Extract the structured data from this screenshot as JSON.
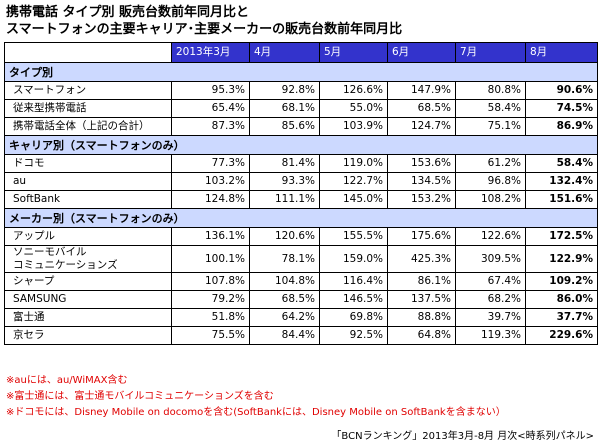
{
  "header": {
    "title_lines": [
      "携帯電話 タイプ別 販売台数前年同月比と",
      "スマートフォンの主要キャリア･主要メーカーの販売台数前年同月比"
    ]
  },
  "table": {
    "columns": [
      "2013年3月",
      "4月",
      "5月",
      "6月",
      "7月",
      "8月"
    ],
    "sections": [
      {
        "title": "タイプ別",
        "rows": [
          {
            "label": [
              "スマートフォン"
            ],
            "values": [
              "95.3%",
              "92.8%",
              "126.6%",
              "147.9%",
              "80.8%",
              "90.6%"
            ]
          },
          {
            "label": [
              "従来型携帯電話"
            ],
            "values": [
              "65.4%",
              "68.1%",
              "55.0%",
              "68.5%",
              "58.4%",
              "74.5%"
            ]
          },
          {
            "label": [
              "携帯電話全体（上記の合計）"
            ],
            "values": [
              "87.3%",
              "85.6%",
              "103.9%",
              "124.7%",
              "75.1%",
              "86.9%"
            ]
          }
        ]
      },
      {
        "title": "キャリア別（スマートフォンのみ）",
        "rows": [
          {
            "label": [
              "ドコモ"
            ],
            "values": [
              "77.3%",
              "81.4%",
              "119.0%",
              "153.6%",
              "61.2%",
              "58.4%"
            ]
          },
          {
            "label": [
              "au"
            ],
            "values": [
              "103.2%",
              "93.3%",
              "122.7%",
              "134.5%",
              "96.8%",
              "132.4%"
            ]
          },
          {
            "label": [
              "SoftBank"
            ],
            "values": [
              "124.8%",
              "111.1%",
              "145.0%",
              "153.2%",
              "108.2%",
              "151.6%"
            ]
          }
        ]
      },
      {
        "title": "メーカー別（スマートフォンのみ）",
        "rows": [
          {
            "label": [
              "アップル"
            ],
            "values": [
              "136.1%",
              "120.6%",
              "155.5%",
              "175.6%",
              "122.6%",
              "172.5%"
            ]
          },
          {
            "label": [
              "ソニーモバイル",
              "コミュニケーションズ"
            ],
            "values": [
              "100.1%",
              "78.1%",
              "159.0%",
              "425.3%",
              "309.5%",
              "122.9%"
            ]
          },
          {
            "label": [
              "シャープ"
            ],
            "values": [
              "107.8%",
              "104.8%",
              "116.4%",
              "86.1%",
              "67.4%",
              "109.2%"
            ]
          },
          {
            "label": [
              "SAMSUNG"
            ],
            "values": [
              "79.2%",
              "68.5%",
              "146.5%",
              "137.5%",
              "68.2%",
              "86.0%"
            ]
          },
          {
            "label": [
              "富士通"
            ],
            "values": [
              "51.8%",
              "64.2%",
              "69.8%",
              "88.8%",
              "39.7%",
              "37.7%"
            ]
          },
          {
            "label": [
              "京セラ"
            ],
            "values": [
              "75.5%",
              "84.4%",
              "92.5%",
              "64.8%",
              "119.3%",
              "229.6%"
            ]
          }
        ]
      }
    ]
  },
  "notes": [
    "※auには、au/WiMAX含む",
    "※富士通には、富士通モバイルコミュニケーションズを含む",
    "※ドコモには、Disney Mobile on docomoを含む(SoftBankには、Disney Mobile on SoftBankを含まない）"
  ],
  "source": "「BCNランキング」2013年3月-8月 月次<時系列パネル>"
}
